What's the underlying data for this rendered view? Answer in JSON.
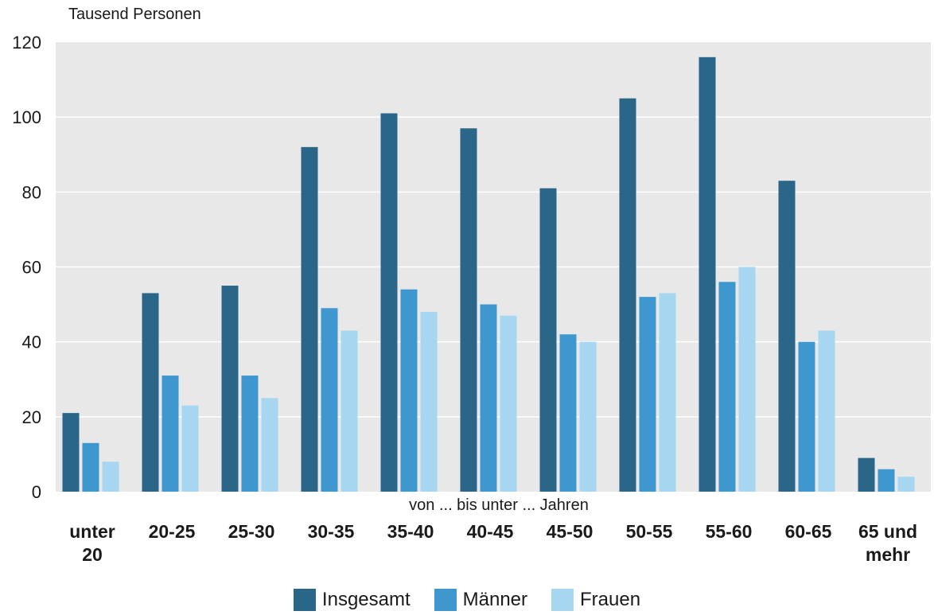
{
  "chart_data": {
    "type": "bar",
    "unit_label": "Tausend Personen",
    "x_caption": "von ... bis unter ... Jahren",
    "categories": [
      "unter 20",
      "20-25",
      "25-30",
      "30-35",
      "35-40",
      "40-45",
      "45-50",
      "50-55",
      "55-60",
      "60-65",
      "65 und mehr"
    ],
    "series": [
      {
        "name": "Insgesamt",
        "color": "#2a6688",
        "values": [
          21,
          53,
          55,
          92,
          101,
          97,
          81,
          105,
          116,
          83,
          9
        ]
      },
      {
        "name": "Männer",
        "color": "#3f97cf",
        "values": [
          13,
          31,
          31,
          49,
          54,
          50,
          42,
          52,
          56,
          40,
          6
        ]
      },
      {
        "name": "Frauen",
        "color": "#a7d6f0",
        "values": [
          8,
          23,
          25,
          43,
          48,
          47,
          40,
          53,
          60,
          43,
          4
        ]
      }
    ],
    "ylim": [
      0,
      120
    ],
    "yticks": [
      0,
      20,
      40,
      60,
      80,
      100,
      120
    ],
    "grid": true,
    "legend_position": "bottom"
  },
  "style": {
    "plot_background": "#e8e8e8",
    "grid_color": "#ffffff"
  }
}
